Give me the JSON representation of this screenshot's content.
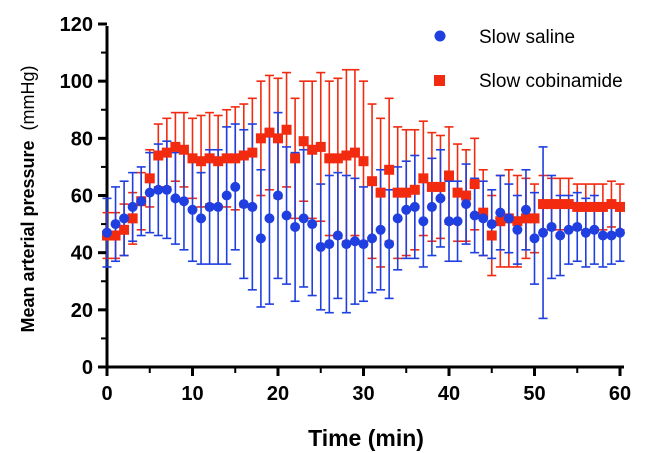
{
  "chart_data": {
    "type": "scatter",
    "title": "",
    "xlabel": "Time (min)",
    "ylabel_main": "Mean arterial pressure",
    "ylabel_unit": "(mmHg)",
    "xlim": [
      0,
      60
    ],
    "ylim": [
      0,
      120
    ],
    "xticks": [
      0,
      10,
      20,
      30,
      40,
      50,
      60
    ],
    "yticks": [
      0,
      20,
      40,
      60,
      80,
      100,
      120
    ],
    "grid": false,
    "legend_position": "top-right",
    "series": [
      {
        "name": "Slow saline",
        "marker": "circle",
        "color": "#1f3fe0",
        "x": [
          0,
          1,
          2,
          3,
          4,
          5,
          6,
          7,
          8,
          9,
          10,
          11,
          12,
          13,
          14,
          15,
          16,
          17,
          18,
          19,
          20,
          21,
          22,
          23,
          24,
          25,
          26,
          27,
          28,
          29,
          30,
          31,
          32,
          33,
          34,
          35,
          36,
          37,
          38,
          39,
          40,
          41,
          42,
          43,
          44,
          45,
          46,
          47,
          48,
          49,
          50,
          51,
          52,
          53,
          54,
          55,
          56,
          57,
          58,
          59,
          60
        ],
        "y": [
          47,
          50,
          52,
          56,
          58,
          61,
          62,
          62,
          59,
          58,
          55,
          52,
          56,
          56,
          60,
          63,
          57,
          56,
          45,
          52,
          60,
          53,
          49,
          52,
          50,
          42,
          43,
          46,
          43,
          44,
          43,
          45,
          48,
          43,
          52,
          55,
          56,
          51,
          56,
          59,
          51,
          51,
          57,
          53,
          52,
          50,
          54,
          52,
          48,
          55,
          45,
          47,
          49,
          46,
          48,
          49,
          47,
          48,
          46,
          46,
          47
        ],
        "yerr": [
          12,
          13,
          13,
          12,
          12,
          14,
          16,
          17,
          16,
          17,
          18,
          16,
          20,
          20,
          24,
          22,
          26,
          29,
          24,
          30,
          29,
          24,
          26,
          24,
          25,
          22,
          24,
          22,
          24,
          22,
          20,
          19,
          21,
          19,
          18,
          17,
          18,
          16,
          17,
          17,
          14,
          14,
          14,
          13,
          13,
          12,
          13,
          12,
          12,
          14,
          16,
          30,
          18,
          14,
          12,
          12,
          12,
          12,
          11,
          10,
          10
        ]
      },
      {
        "name": "Slow cobinamide",
        "marker": "square",
        "color": "#f22a10",
        "x": [
          0,
          1,
          2,
          3,
          4,
          5,
          6,
          7,
          8,
          9,
          10,
          11,
          12,
          13,
          14,
          15,
          16,
          17,
          18,
          19,
          20,
          21,
          22,
          23,
          24,
          25,
          26,
          27,
          28,
          29,
          30,
          31,
          32,
          33,
          34,
          35,
          36,
          37,
          38,
          39,
          40,
          41,
          42,
          43,
          44,
          45,
          46,
          47,
          48,
          49,
          50,
          51,
          52,
          53,
          54,
          55,
          56,
          57,
          58,
          59,
          60
        ],
        "y": [
          46,
          46,
          48,
          52,
          58,
          66,
          74,
          75,
          77,
          76,
          73,
          72,
          73,
          72,
          73,
          73,
          74,
          75,
          80,
          82,
          80,
          83,
          73,
          79,
          76,
          77,
          73,
          73,
          74,
          75,
          72,
          65,
          61,
          69,
          61,
          61,
          62,
          66,
          63,
          63,
          67,
          61,
          60,
          64,
          54,
          46,
          51,
          52,
          51,
          52,
          52,
          57,
          57,
          57,
          57,
          56,
          56,
          56,
          56,
          57,
          56
        ],
        "yerr": [
          8,
          8,
          9,
          9,
          10,
          10,
          11,
          12,
          12,
          13,
          14,
          16,
          16,
          16,
          17,
          18,
          18,
          19,
          20,
          20,
          21,
          20,
          21,
          21,
          24,
          26,
          27,
          28,
          30,
          29,
          28,
          27,
          26,
          25,
          23,
          22,
          21,
          20,
          19,
          18,
          17,
          17,
          16,
          16,
          15,
          14,
          16,
          17,
          16,
          14,
          12,
          10,
          9,
          9,
          9,
          8,
          8,
          8,
          8,
          8,
          8
        ]
      }
    ]
  }
}
